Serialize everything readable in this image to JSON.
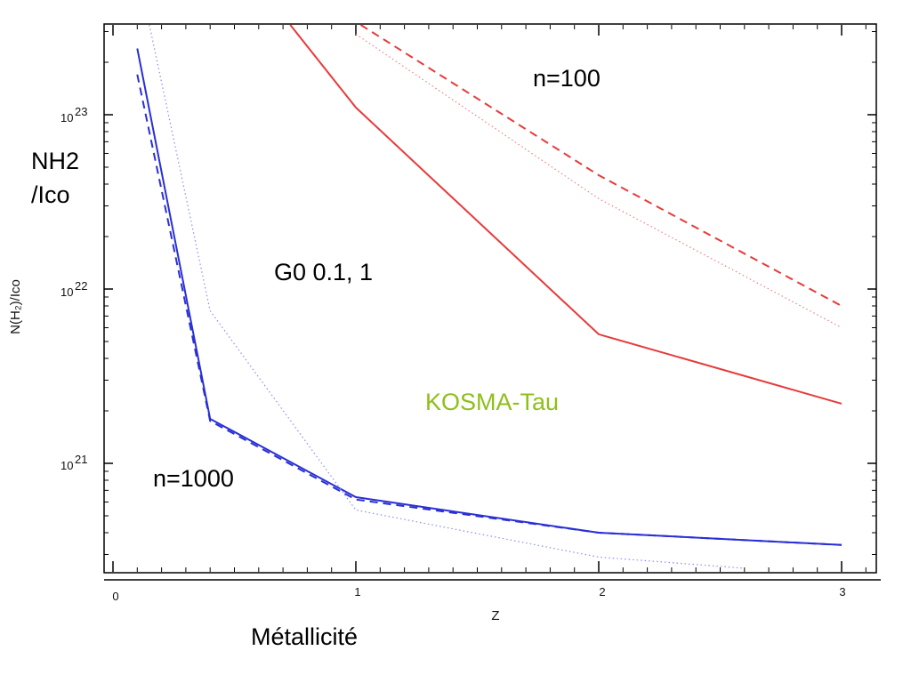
{
  "chart_data": {
    "type": "line",
    "ylabel": "N(H₂)/Iᴄᴏ",
    "xlabel": "Z",
    "xlim": [
      0,
      3.15
    ],
    "ylim": [
      2.5e+20,
      3.5e+23
    ],
    "y_scale": "log",
    "x_ticks": [
      "0",
      "1",
      "2",
      "3"
    ],
    "y_ticks": [
      {
        "value": 1e+21,
        "mantissa": "10",
        "exp": "21"
      },
      {
        "value": 1e+22,
        "mantissa": "10",
        "exp": "22"
      },
      {
        "value": 1e+23,
        "mantissa": "10",
        "exp": "23"
      }
    ],
    "annotations": {
      "n100": "n=100",
      "n1000": "n=1000",
      "g0": "G0 0.1, 1",
      "kosma": "KOSMA-Tau",
      "yaxis_note_line1": "NH2",
      "yaxis_note_line2": "/Ico",
      "xaxis_note": "Métallicité"
    },
    "colors": {
      "red": "#e83a3a",
      "red_light": "#f08080",
      "blue": "#2a2fd6",
      "blue_light": "#8a8ff0",
      "green": "#8fbf1a"
    },
    "series": [
      {
        "group": "n=1000",
        "style": "solid",
        "color": "blue",
        "x": [
          0.1,
          0.4,
          1,
          2,
          3
        ],
        "y": [
          2.4e+23,
          1.8e+21,
          6.4e+20,
          4e+20,
          3.4e+20
        ]
      },
      {
        "group": "n=1000",
        "style": "dashed",
        "color": "blue",
        "x": [
          0.1,
          0.4,
          1,
          2,
          3
        ],
        "y": [
          1.7e+23,
          1.75e+21,
          6.2e+20,
          4e+20,
          3.4e+20
        ]
      },
      {
        "group": "n=1000",
        "style": "dotted",
        "color": "blue_light",
        "x": [
          0.15,
          0.4,
          1,
          2,
          2.6
        ],
        "y": [
          3.5e+23,
          7.5e+21,
          5.4e+20,
          2.9e+20,
          2.5e+20
        ]
      },
      {
        "group": "n=100",
        "style": "solid",
        "color": "red",
        "x": [
          0.73,
          1,
          2,
          3
        ],
        "y": [
          3.5e+23,
          1.1e+23,
          5.5e+21,
          2.2e+21
        ]
      },
      {
        "group": "n=100",
        "style": "dashed",
        "color": "red",
        "x": [
          1.02,
          2,
          3
        ],
        "y": [
          3.5e+23,
          4.5e+22,
          8e+21
        ]
      },
      {
        "group": "n=100",
        "style": "dotted",
        "color": "red_light",
        "x": [
          1,
          2,
          3
        ],
        "y": [
          2.9e+23,
          3.3e+22,
          6e+21
        ]
      }
    ]
  }
}
